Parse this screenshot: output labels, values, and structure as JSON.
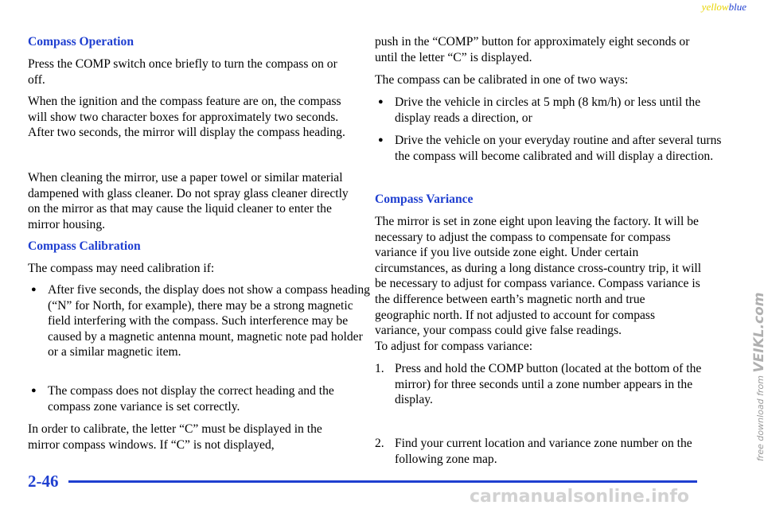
{
  "header": {
    "left_word": "yellow",
    "right_word": "blue"
  },
  "left_column": [
    {
      "kind": "heading",
      "text": "Compass Operation"
    },
    {
      "kind": "paragraph",
      "text": "Press the COMP switch once briefly to turn the compass on or off."
    },
    {
      "kind": "paragraph",
      "text": "When the ignition and the compass feature are on, the compass will show two character boxes for approximately two seconds. After two seconds, the mirror will display the compass heading."
    },
    {
      "kind": "paragraph",
      "text": "When cleaning the mirror, use a paper towel or similar material dampened with glass cleaner. Do not spray glass cleaner directly on the mirror as that may cause the liquid cleaner to enter the mirror housing."
    },
    {
      "kind": "heading",
      "text": "Compass Calibration"
    },
    {
      "kind": "paragraph",
      "text": "The compass may need calibration if:"
    },
    {
      "kind": "bullet",
      "text": "After five seconds, the display does not show a compass heading (“N” for North, for example), there may be a strong magnetic field interfering with the compass. Such interference may be caused by a magnetic antenna mount, magnetic note pad holder or a similar magnetic item."
    },
    {
      "kind": "bullet",
      "text": "The compass does not display the correct heading and the compass zone variance is set correctly."
    },
    {
      "kind": "paragraph",
      "text": "In order to calibrate, the letter “C” must be displayed in the mirror compass windows. If “C” is not displayed,"
    }
  ],
  "right_column": [
    {
      "kind": "paragraph",
      "text": "push in the “COMP” button for approximately eight seconds or until the letter “C” is displayed."
    },
    {
      "kind": "paragraph",
      "text": "The compass can be calibrated in one of two ways:"
    },
    {
      "kind": "bullet",
      "text": "Drive the vehicle in circles at 5 mph (8 km/h) or less until the display reads a direction, or"
    },
    {
      "kind": "bullet",
      "text": "Drive the vehicle on your everyday routine and after several turns the compass will become calibrated and will display a direction."
    },
    {
      "kind": "heading",
      "text": "Compass Variance"
    },
    {
      "kind": "paragraph",
      "text": "The mirror is set in zone eight upon leaving the factory. It will be necessary to adjust the compass to compensate for compass variance if you live outside zone eight. Under certain circumstances, as during a long distance cross‑country trip, it will be necessary to adjust for compass variance. Compass variance is the difference between earth’s magnetic north and true geographic north. If not adjusted to account for compass variance, your compass could give false readings."
    },
    {
      "kind": "paragraph",
      "text": "To adjust for compass variance:"
    },
    {
      "kind": "numbered",
      "number": "1.",
      "text": "Press and hold the COMP button (located at the bottom of the mirror) for three seconds until a zone number appears in the display."
    },
    {
      "kind": "numbered",
      "number": "2.",
      "text": "Find your current location and variance zone number on the following zone map."
    }
  ],
  "footer": {
    "page_number": "2-46"
  },
  "watermark": {
    "side_prefix": "free download from",
    "side_brand": "VEIKL.com",
    "bottom": "carmanualsonline.info"
  }
}
